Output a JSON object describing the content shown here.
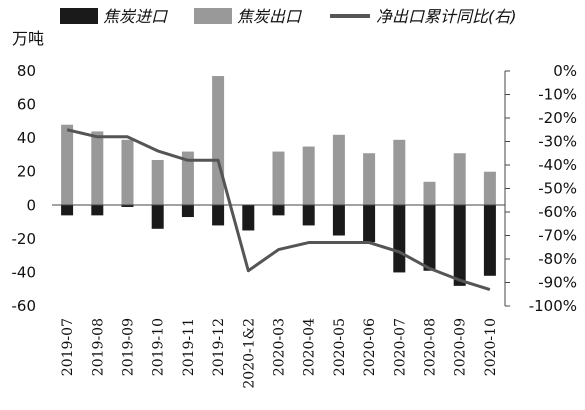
{
  "chart_data": {
    "type": "bar",
    "categories": [
      "2019-07",
      "2019-08",
      "2019-09",
      "2019-10",
      "2019-11",
      "2019-12",
      "2020-1&2",
      "2020-03",
      "2020-04",
      "2020-05",
      "2020-06",
      "2020-07",
      "2020-08",
      "2020-09",
      "2020-10"
    ],
    "series": [
      {
        "name": "焦炭进口",
        "type": "bar",
        "axis": "left",
        "color": "#1a1a1a",
        "values": [
          -6,
          -6,
          -1,
          -14,
          -7,
          -12,
          -15,
          -6,
          -12,
          -18,
          -22,
          -40,
          -39,
          -48,
          -42
        ]
      },
      {
        "name": "焦炭出口",
        "type": "bar",
        "axis": "left",
        "color": "#999999",
        "values": [
          48,
          44,
          39,
          27,
          32,
          77,
          0,
          32,
          35,
          42,
          31,
          39,
          14,
          31,
          20
        ]
      },
      {
        "name": "净出口累计同比(右)",
        "type": "line",
        "axis": "right",
        "color": "#555555",
        "values": [
          -25,
          -28,
          -28,
          -34,
          -38,
          -38,
          -85,
          -76,
          -73,
          -73,
          -73,
          -77,
          -84,
          -89,
          -93
        ]
      }
    ],
    "ylabel": "万吨",
    "ylim": [
      -60,
      80
    ],
    "yticks": [
      80,
      60,
      40,
      20,
      0,
      -20,
      -40,
      -60
    ],
    "y2lim": [
      -100,
      0
    ],
    "y2ticks": [
      "0%",
      "-10%",
      "-20%",
      "-30%",
      "-40%",
      "-50%",
      "-60%",
      "-70%",
      "-80%",
      "-90%",
      "-100%"
    ],
    "legend_position": "top",
    "grid": false
  }
}
